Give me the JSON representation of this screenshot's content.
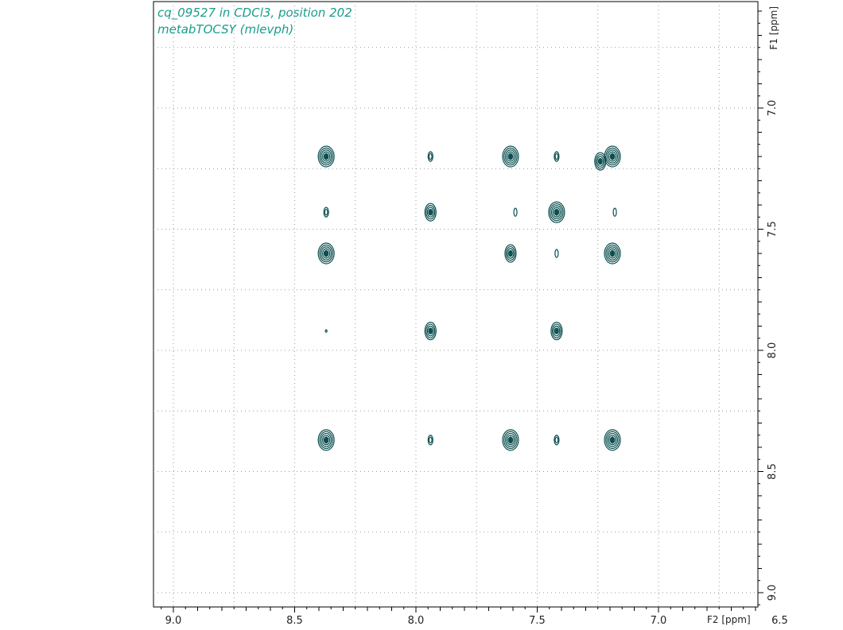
{
  "colors": {
    "title": "#1a9c8c",
    "contour": "#0c4f4f",
    "grid": "#9a9a9a",
    "frame": "#000000"
  },
  "title_lines": [
    "cq_09527 in CDCl3, position 202",
    "metabTOCSY (mlevph)"
  ],
  "chart_data": {
    "type": "contour",
    "title": "cq_09527 in CDCl3, position 202",
    "subtitle": "metabTOCSY (mlevph)",
    "xlabel": "F2 [ppm]",
    "ylabel": "F1 [ppm]",
    "xlim": [
      9.1,
      6.2
    ],
    "ylim": [
      6.6,
      9.1
    ],
    "x_axis_reversed": true,
    "y_axis_reversed": true,
    "x_ticks": [
      "9.0",
      "8.5",
      "8.0",
      "7.5",
      "7.0",
      "6.5"
    ],
    "y_ticks": [
      "7.0",
      "7.5",
      "8.0",
      "8.5",
      "9.0"
    ],
    "grid": true,
    "grid_style": "dotted",
    "peaks": [
      {
        "f2": 8.37,
        "f1": 7.2,
        "size": "large"
      },
      {
        "f2": 7.94,
        "f1": 7.2,
        "size": "small"
      },
      {
        "f2": 7.61,
        "f1": 7.2,
        "size": "large"
      },
      {
        "f2": 7.42,
        "f1": 7.2,
        "size": "small"
      },
      {
        "f2": 7.19,
        "f1": 7.2,
        "size": "large"
      },
      {
        "f2": 7.24,
        "f1": 7.22,
        "size": "medium"
      },
      {
        "f2": 8.37,
        "f1": 7.43,
        "size": "small"
      },
      {
        "f2": 7.94,
        "f1": 7.43,
        "size": "medium"
      },
      {
        "f2": 7.59,
        "f1": 7.43,
        "size": "tiny"
      },
      {
        "f2": 7.42,
        "f1": 7.43,
        "size": "large"
      },
      {
        "f2": 7.18,
        "f1": 7.43,
        "size": "tiny"
      },
      {
        "f2": 8.37,
        "f1": 7.6,
        "size": "large"
      },
      {
        "f2": 7.61,
        "f1": 7.6,
        "size": "medium"
      },
      {
        "f2": 7.42,
        "f1": 7.6,
        "size": "tiny"
      },
      {
        "f2": 7.19,
        "f1": 7.6,
        "size": "large"
      },
      {
        "f2": 8.37,
        "f1": 7.92,
        "size": "dot"
      },
      {
        "f2": 7.94,
        "f1": 7.92,
        "size": "medium"
      },
      {
        "f2": 7.42,
        "f1": 7.92,
        "size": "medium"
      },
      {
        "f2": 8.37,
        "f1": 8.37,
        "size": "large"
      },
      {
        "f2": 7.94,
        "f1": 8.37,
        "size": "small"
      },
      {
        "f2": 7.61,
        "f1": 8.37,
        "size": "large"
      },
      {
        "f2": 7.42,
        "f1": 8.37,
        "size": "small"
      },
      {
        "f2": 7.19,
        "f1": 8.37,
        "size": "large"
      }
    ]
  }
}
